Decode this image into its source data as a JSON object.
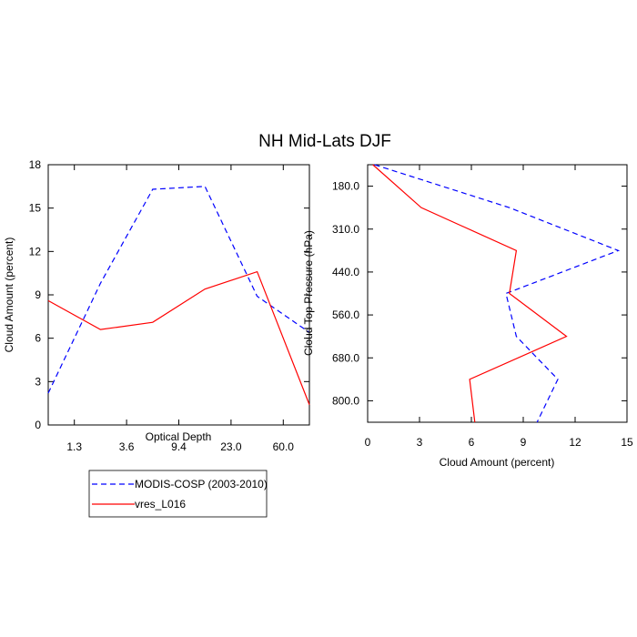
{
  "title": "NH Mid-Lats DJF",
  "colors": {
    "modis": "#0000ff",
    "model": "#ff0000",
    "axis": "#000000"
  },
  "chart_data": [
    {
      "type": "line",
      "panel": "left",
      "xlabel": "Optical Depth",
      "ylabel": "Cloud Amount (percent)",
      "ylim": [
        0,
        18
      ],
      "yticks": [
        "0",
        "3",
        "6",
        "9",
        "12",
        "15",
        "18"
      ],
      "xtick_labels": [
        "1.3",
        "3.6",
        "9.4",
        "23.0",
        "60.0"
      ],
      "x_index_range": [
        0.5,
        5.5
      ],
      "x": [
        0.5,
        1.5,
        2.5,
        3.5,
        4.5,
        5.5
      ],
      "series": [
        {
          "name": "MODIS-COSP (2003-2010)",
          "style": "dashed",
          "color": "#0000ff",
          "values": [
            2.2,
            9.8,
            16.3,
            16.5,
            8.9,
            6.4
          ]
        },
        {
          "name": "vres_L016",
          "style": "solid",
          "color": "#ff0000",
          "values": [
            8.6,
            6.6,
            7.1,
            9.4,
            10.6,
            1.4
          ]
        }
      ]
    },
    {
      "type": "line",
      "panel": "right",
      "xlabel": "Cloud Amount (percent)",
      "ylabel": "Cloud Top Pressure (hPa)",
      "xlim": [
        0,
        15
      ],
      "xticks": [
        "0",
        "3",
        "6",
        "9",
        "12",
        "15"
      ],
      "ytick_labels": [
        "180.0",
        "310.0",
        "440.0",
        "560.0",
        "680.0",
        "800.0"
      ],
      "y_index_range": [
        0.5,
        6.5
      ],
      "y": [
        0.5,
        1.5,
        2.5,
        3.5,
        4.5,
        5.5,
        6.5
      ],
      "series": [
        {
          "name": "MODIS-COSP (2003-2010)",
          "style": "dashed",
          "color": "#0000ff",
          "values": [
            0.4,
            8.2,
            14.5,
            8.0,
            8.6,
            11.0,
            9.8
          ]
        },
        {
          "name": "vres_L016",
          "style": "solid",
          "color": "#ff0000",
          "values": [
            0.3,
            3.1,
            8.6,
            8.2,
            11.5,
            5.9,
            6.2
          ]
        }
      ]
    }
  ],
  "legend": [
    {
      "label": "MODIS-COSP (2003-2010)",
      "style": "dashed",
      "color": "#0000ff"
    },
    {
      "label": "vres_L016",
      "style": "solid",
      "color": "#ff0000"
    }
  ]
}
